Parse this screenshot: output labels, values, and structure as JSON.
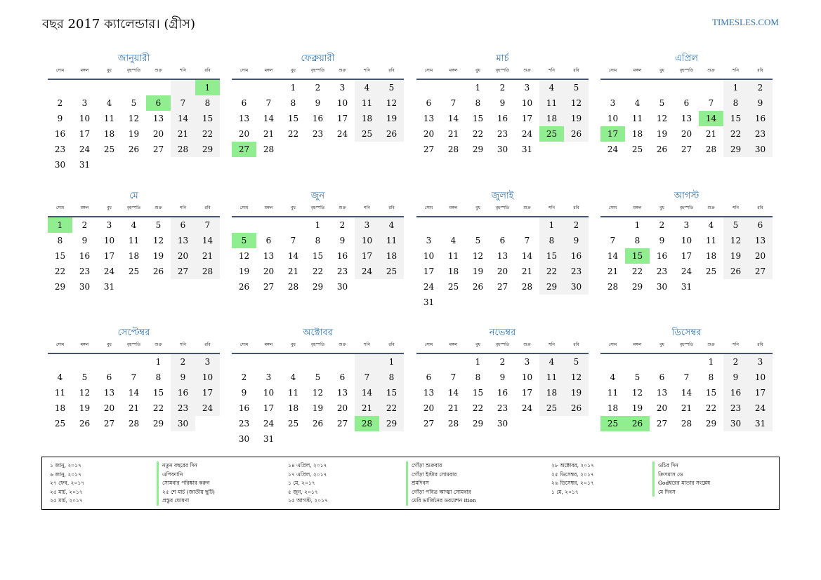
{
  "header": {
    "title": "বছর 2017 ক্যালেন্ডার। (গ্রীস)",
    "site": "TIMESLES.COM"
  },
  "weekdays": [
    "সোম",
    "মঙ্গল",
    "বুধ",
    "বৃহস্পতি",
    "শুক্র",
    "শনি",
    "রবি"
  ],
  "months": [
    {
      "name": "জানুয়ারী",
      "offset": 6,
      "days": 31,
      "holidays": [
        1,
        6
      ]
    },
    {
      "name": "ফেব্রুয়ারী",
      "offset": 2,
      "days": 28,
      "holidays": [
        27
      ]
    },
    {
      "name": "মার্চ",
      "offset": 2,
      "days": 31,
      "holidays": [
        25
      ]
    },
    {
      "name": "এপ্রিল",
      "offset": 5,
      "days": 30,
      "holidays": [
        14,
        17
      ]
    },
    {
      "name": "মে",
      "offset": 0,
      "days": 31,
      "holidays": [
        1
      ]
    },
    {
      "name": "জুন",
      "offset": 3,
      "days": 30,
      "holidays": [
        5
      ]
    },
    {
      "name": "জুলাই",
      "offset": 5,
      "days": 31,
      "holidays": []
    },
    {
      "name": "আগস্ট",
      "offset": 1,
      "days": 31,
      "holidays": [
        15
      ]
    },
    {
      "name": "সেপ্টেম্বর",
      "offset": 4,
      "days": 30,
      "holidays": []
    },
    {
      "name": "অক্টোবর",
      "offset": 6,
      "days": 31,
      "holidays": [
        28
      ]
    },
    {
      "name": "নভেম্বর",
      "offset": 2,
      "days": 30,
      "holidays": []
    },
    {
      "name": "ডিসেম্বর",
      "offset": 4,
      "days": 31,
      "holidays": [
        25,
        26
      ]
    }
  ],
  "legend": {
    "col1": {
      "dates": [
        "১ জানু, ২০১৭",
        "৬ জানু, ২০১৭",
        "২৭ ফেব, ২০১৭",
        "২৫ মার্চ, ২০১৭",
        "২৫ মার্চ, ২০১৭"
      ],
      "names": [
        "নতুন বছরের দিন",
        "এপিফ্যানি",
        "সোমবার পরিষ্কার করুন",
        "২৫ শে মার্চ (জাতীয় ছুটি)",
        "প্রস্তুর ঘোষণা"
      ]
    },
    "col2": {
      "dates": [
        "১৪ এপ্রিল, ২০১৭",
        "১৭ এপ্রিল, ২০১৭",
        "১ মে, ২০১৭",
        "৫ জুন, ২০১৭",
        "১৫ আগস্ট, ২০১৭"
      ],
      "names": [
        "গোঁড়া শুক্রবার",
        "গোঁড়া ইস্টার সোমবার",
        "শ্রমদিবস",
        "গোঁড়া পবিত্র আত্মা সোমবার",
        "মেরি ভার্জিনের ডরমেশন ition"
      ]
    },
    "col3": {
      "dates": [
        "২৮ অক্টোবর, ২০১৭",
        "২৫ ডিসেম্বর, ২০১৭",
        "২৬ ডিসেম্বর, ২০১৭",
        "১ মে, ২০১৭"
      ],
      "names": [
        "ওচির দিন",
        "ক্রিসমাস ডে",
        "Godশ্বরের মাতার সংশ্লেষ",
        "মে দিবস"
      ]
    }
  }
}
